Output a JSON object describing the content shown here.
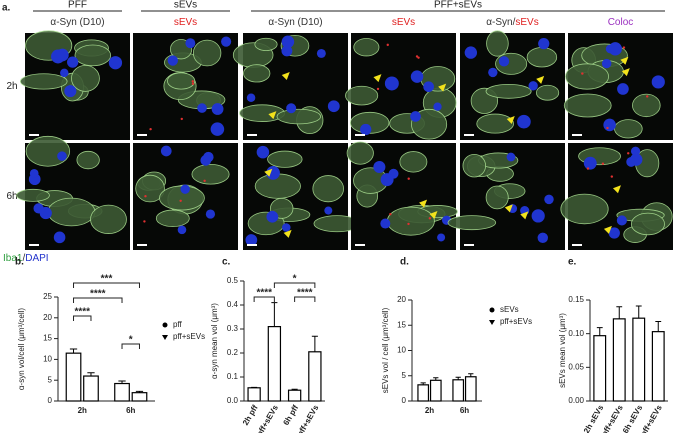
{
  "figure": {
    "panel_label": "a.",
    "groups": [
      "PFF",
      "sEVs",
      "PFF+sEVs"
    ],
    "columns": [
      [
        {
          "text": "α-Syn (D10)",
          "color": "#333333"
        }
      ],
      [
        {
          "text": "sEVs",
          "color": "#e02020"
        }
      ],
      [
        {
          "text": "α-Syn (D10)",
          "color": "#333333"
        }
      ],
      [
        {
          "text": "sEVs",
          "color": "#e02020"
        }
      ],
      [
        {
          "text": "α-Syn/",
          "color": "#333333"
        },
        {
          "text": "sEVs",
          "color": "#e02020"
        }
      ],
      [
        {
          "text": "Coloc",
          "color": "#9b30c0"
        }
      ]
    ],
    "rows": [
      "2h",
      "6h"
    ],
    "stain": [
      {
        "text": "Iba1",
        "color": "#2e9e3e"
      },
      {
        "text": "/",
        "color": "#333333"
      },
      {
        "text": "DAPI",
        "color": "#2233cc"
      }
    ]
  },
  "chart_data": [
    {
      "type": "bar",
      "label": "b.",
      "ylabel": "α-syn vol/cell (μm³/cell)",
      "categories": [
        "2h",
        "6h"
      ],
      "series": [
        {
          "name": "pff",
          "marker": "circle",
          "color": "#000000",
          "values": [
            11.5,
            4.2
          ],
          "errors": [
            1.0,
            0.6
          ]
        },
        {
          "name": "pff+sEVs",
          "marker": "triangle",
          "color": "#000000",
          "values": [
            6.0,
            2.0
          ],
          "errors": [
            0.8,
            0.3
          ]
        }
      ],
      "ylim": [
        0,
        25
      ],
      "yticks": [
        0,
        5,
        10,
        15,
        20,
        25
      ],
      "annotations": [
        "****",
        "****",
        "***",
        "*"
      ],
      "legend": "right"
    },
    {
      "type": "bar",
      "label": "c.",
      "ylabel": "α-syn mean vol (μm³)",
      "categories": [
        "2h pff",
        "2h pff+sEVs",
        "6h pff",
        "6h pff+sEVs"
      ],
      "values": [
        0.055,
        0.31,
        0.045,
        0.205
      ],
      "errors": [
        0.002,
        0.1,
        0.004,
        0.065
      ],
      "color": "#000000",
      "ylim": [
        0,
        0.5
      ],
      "yticks": [
        {
          "value": 0,
          "label": "0.0"
        },
        0.1,
        0.2,
        0.3,
        0.4,
        0.5
      ],
      "annotations": [
        "****",
        "****",
        "*"
      ]
    },
    {
      "type": "bar",
      "label": "d.",
      "ylabel": "sEVs vol / cell (μm³/cell)",
      "categories": [
        "2h",
        "6h"
      ],
      "series": [
        {
          "name": "sEVs",
          "marker": "circle",
          "color": "#000000",
          "values": [
            3.2,
            4.2
          ],
          "errors": [
            0.4,
            0.5
          ]
        },
        {
          "name": "pff+sEVs",
          "marker": "triangle",
          "color": "#000000",
          "values": [
            4.1,
            4.8
          ],
          "errors": [
            0.5,
            0.6
          ]
        }
      ],
      "ylim": [
        0,
        20
      ],
      "yticks": [
        0,
        5,
        10,
        15,
        20
      ],
      "legend": "upper right"
    },
    {
      "type": "bar",
      "label": "e.",
      "ylabel": "sEVs mean vol (μm³)",
      "categories": [
        "2h sEVs",
        "2h pff+sEVs",
        "6h sEVs",
        "6h pff+sEVs"
      ],
      "values": [
        0.097,
        0.122,
        0.123,
        0.103
      ],
      "errors": [
        0.012,
        0.018,
        0.018,
        0.015
      ],
      "color": "#000000",
      "ylim": [
        0,
        0.15
      ],
      "yticks": [
        {
          "value": 0,
          "label": "0.00"
        },
        0.05,
        {
          "value": 0.1,
          "label": "0.10"
        },
        0.15
      ]
    }
  ]
}
